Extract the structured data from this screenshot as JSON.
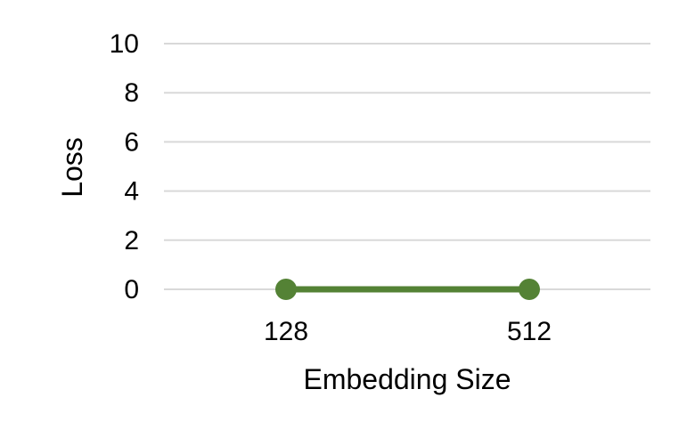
{
  "chart_data": {
    "type": "line",
    "title": "",
    "xlabel": "Embedding Size",
    "ylabel": "Loss",
    "categories": [
      "128",
      "512"
    ],
    "series": [
      {
        "values": [
          0,
          0
        ],
        "color": "#548235"
      }
    ],
    "ylim": [
      0,
      10
    ],
    "yticks": [
      "0",
      "2",
      "4",
      "6",
      "8",
      "10"
    ],
    "grid": true,
    "legend": "none"
  }
}
